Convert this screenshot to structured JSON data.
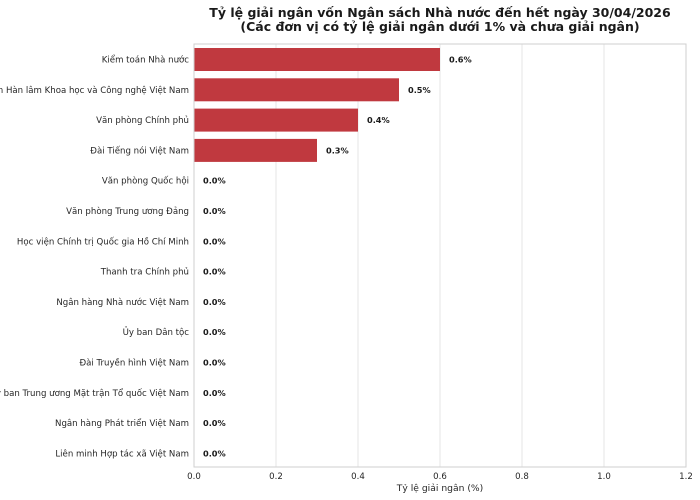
{
  "chart_data": {
    "type": "bar",
    "orientation": "horizontal",
    "title": "Tỷ lệ giải ngân vốn Ngân sách Nhà nước đến hết ngày 30/04/2026",
    "subtitle": "(Các đơn vị có tỷ lệ giải ngân dưới 1% và chưa giải ngân)",
    "xlabel": "Tỷ lệ giải ngân (%)",
    "ylabel": "",
    "xlim": [
      0,
      1.2
    ],
    "xticks": [
      "0.0",
      "0.2",
      "0.4",
      "0.6",
      "0.8",
      "1.0",
      "1.2"
    ],
    "grid": "vertical",
    "bar_color": "#c0393f",
    "categories": [
      "Kiểm toán Nhà nước",
      "Viện Hàn lâm Khoa học và Công nghệ Việt Nam",
      "Văn phòng Chính phủ",
      "Đài Tiếng nói Việt Nam",
      "Văn phòng Quốc hội",
      "Văn phòng Trung ương Đảng",
      "Học viện Chính trị Quốc gia Hồ Chí Minh",
      "Thanh tra Chính phủ",
      "Ngân hàng Nhà nước Việt Nam",
      "Ủy ban Dân tộc",
      "Đài Truyền hình Việt Nam",
      "Ủy ban Trung ương Mặt trận Tổ quốc Việt Nam",
      "Ngân hàng Phát triển Việt Nam",
      "Liên minh Hợp tác xã Việt Nam"
    ],
    "values": [
      0.6,
      0.5,
      0.4,
      0.3,
      0,
      0,
      0,
      0,
      0,
      0,
      0,
      0,
      0,
      0
    ],
    "value_labels": [
      "0.6%",
      "0.5%",
      "0.4%",
      "0.3%",
      "0.0%",
      "0.0%",
      "0.0%",
      "0.0%",
      "0.0%",
      "0.0%",
      "0.0%",
      "0.0%",
      "0.0%",
      "0.0%"
    ]
  }
}
